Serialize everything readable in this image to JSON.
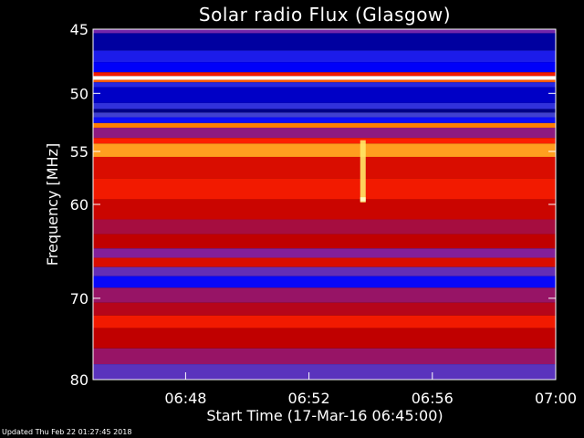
{
  "chart_data": {
    "type": "heatmap",
    "title": "Solar radio Flux (Glasgow)",
    "xlabel": "Start Time (17-Mar-16 06:45:00)",
    "ylabel": "Frequency [MHz]",
    "x_start": "06:45",
    "x_end": "07:00",
    "x_ticks": [
      "06:48",
      "06:52",
      "06:56",
      "07:00"
    ],
    "y_range": [
      45,
      80
    ],
    "y_ticks": [
      45,
      50,
      55,
      60,
      70,
      80
    ],
    "y_scale": "log",
    "colormap": [
      "#000060",
      "#0000ff",
      "#4040d0",
      "#8020a0",
      "#c00000",
      "#ff2000",
      "#ff8000",
      "#ffff80",
      "#ffffff"
    ],
    "frequency_bands": [
      {
        "from": 45.0,
        "to": 45.3,
        "level": 0.35
      },
      {
        "from": 45.3,
        "to": 46.6,
        "level": 0.05
      },
      {
        "from": 46.6,
        "to": 47.5,
        "level": 0.18
      },
      {
        "from": 47.5,
        "to": 48.3,
        "level": 0.12
      },
      {
        "from": 48.3,
        "to": 48.6,
        "level": 0.6
      },
      {
        "from": 48.6,
        "to": 48.9,
        "level": 1.0
      },
      {
        "from": 48.9,
        "to": 49.1,
        "level": 0.7
      },
      {
        "from": 49.1,
        "to": 49.5,
        "level": 0.2
      },
      {
        "from": 49.5,
        "to": 50.8,
        "level": 0.08
      },
      {
        "from": 50.8,
        "to": 51.3,
        "level": 0.22
      },
      {
        "from": 51.3,
        "to": 51.6,
        "level": 0.03
      },
      {
        "from": 51.6,
        "to": 52.0,
        "level": 0.25
      },
      {
        "from": 52.0,
        "to": 52.5,
        "level": 0.15
      },
      {
        "from": 52.5,
        "to": 52.9,
        "level": 0.75
      },
      {
        "from": 52.9,
        "to": 53.8,
        "level": 0.4
      },
      {
        "from": 53.8,
        "to": 54.3,
        "level": 0.62
      },
      {
        "from": 54.3,
        "to": 55.5,
        "level": 0.78
      },
      {
        "from": 55.5,
        "to": 57.5,
        "level": 0.55
      },
      {
        "from": 57.5,
        "to": 59.5,
        "level": 0.6
      },
      {
        "from": 59.5,
        "to": 61.5,
        "level": 0.52
      },
      {
        "from": 61.5,
        "to": 63.0,
        "level": 0.45
      },
      {
        "from": 63.0,
        "to": 64.5,
        "level": 0.5
      },
      {
        "from": 64.5,
        "to": 65.5,
        "level": 0.38
      },
      {
        "from": 65.5,
        "to": 66.5,
        "level": 0.55
      },
      {
        "from": 66.5,
        "to": 67.5,
        "level": 0.32
      },
      {
        "from": 67.5,
        "to": 68.8,
        "level": 0.14
      },
      {
        "from": 68.8,
        "to": 70.5,
        "level": 0.42
      },
      {
        "from": 70.5,
        "to": 72.0,
        "level": 0.48
      },
      {
        "from": 72.0,
        "to": 73.5,
        "level": 0.6
      },
      {
        "from": 73.5,
        "to": 76.0,
        "level": 0.5
      },
      {
        "from": 76.0,
        "to": 78.0,
        "level": 0.42
      },
      {
        "from": 78.0,
        "to": 80.0,
        "level": 0.3
      }
    ],
    "events": [
      {
        "time": "06:53:45",
        "from": 54.0,
        "to": 59.8,
        "level": 0.85
      },
      {
        "time": "06:53:45",
        "from": 59.3,
        "to": 59.7,
        "level": 0.95
      }
    ]
  },
  "footer": {
    "updated": "Updated Thu Feb 22 01:27:45 2018"
  }
}
